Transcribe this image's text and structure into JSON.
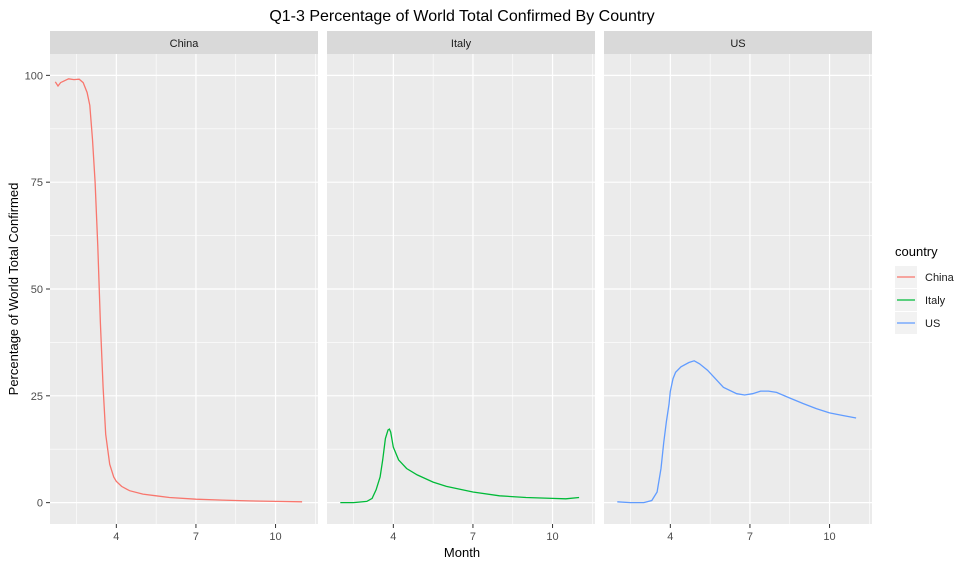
{
  "chart_data": {
    "type": "line",
    "title": "Q1-3 Percentage of World Total Confirmed By Country",
    "xlabel": "Month",
    "ylabel": "Percentage of World Total Confirmed",
    "xlim": [
      1.5,
      11.6
    ],
    "ylim": [
      -5,
      105
    ],
    "x_ticks": [
      4,
      7,
      10
    ],
    "y_ticks": [
      0,
      25,
      50,
      75,
      100
    ],
    "grid": true,
    "legend_position": "right",
    "legend_title": "country",
    "panels": [
      "China",
      "Italy",
      "US"
    ],
    "series": [
      {
        "name": "China",
        "color": "#F8766D",
        "x": [
          1.7,
          1.8,
          1.9,
          2.0,
          2.2,
          2.4,
          2.6,
          2.75,
          2.9,
          3.0,
          3.1,
          3.2,
          3.3,
          3.4,
          3.5,
          3.6,
          3.75,
          3.9,
          4.0,
          4.2,
          4.5,
          5.0,
          5.5,
          6.0,
          7.0,
          8.0,
          9.0,
          10.0,
          11.0
        ],
        "y": [
          98.5,
          97.5,
          98.3,
          98.6,
          99.2,
          99.0,
          99.1,
          98.3,
          96,
          93,
          85,
          75,
          60,
          42,
          27,
          16,
          9,
          6,
          5,
          3.8,
          2.8,
          2,
          1.6,
          1.2,
          0.8,
          0.6,
          0.4,
          0.3,
          0.2
        ]
      },
      {
        "name": "Italy",
        "color": "#00BA38",
        "x": [
          2.0,
          2.5,
          3.0,
          3.2,
          3.35,
          3.5,
          3.6,
          3.7,
          3.8,
          3.85,
          3.9,
          4.0,
          4.2,
          4.5,
          4.9,
          5.5,
          6.0,
          7.0,
          8.0,
          9.0,
          10.0,
          10.5,
          11.0
        ],
        "y": [
          0,
          0,
          0.3,
          1,
          3,
          6,
          10,
          15,
          17,
          17.2,
          16.5,
          13,
          10,
          8,
          6.5,
          4.8,
          3.8,
          2.5,
          1.6,
          1.2,
          1.0,
          0.9,
          1.2
        ]
      },
      {
        "name": "US",
        "color": "#619CFF",
        "x": [
          2.0,
          2.5,
          3.0,
          3.3,
          3.5,
          3.65,
          3.75,
          3.85,
          3.95,
          4.0,
          4.1,
          4.2,
          4.4,
          4.7,
          4.9,
          5.1,
          5.4,
          5.7,
          6.0,
          6.5,
          6.8,
          7.1,
          7.4,
          7.7,
          8.0,
          8.5,
          9.0,
          9.5,
          10.0,
          10.5,
          11.0
        ],
        "y": [
          0.2,
          0,
          0,
          0.5,
          2.5,
          8,
          14,
          19,
          23,
          26,
          29,
          30.5,
          31.8,
          32.8,
          33.2,
          32.5,
          31,
          29,
          27,
          25.5,
          25.2,
          25.5,
          26.1,
          26.1,
          25.8,
          24.5,
          23.2,
          22,
          21,
          20.4,
          19.8
        ]
      }
    ]
  }
}
